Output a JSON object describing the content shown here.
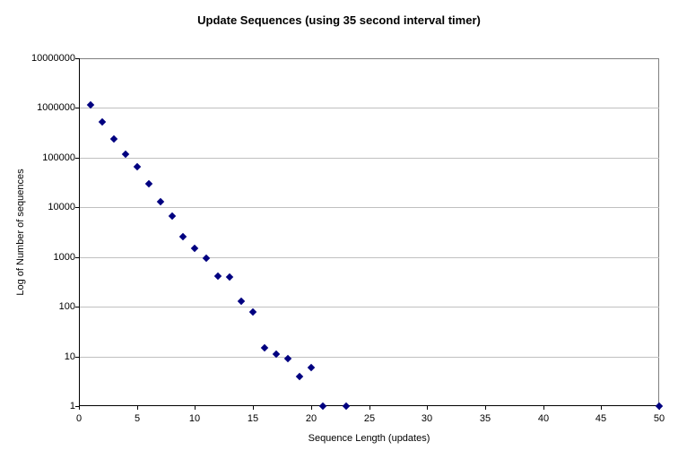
{
  "chart_data": {
    "type": "scatter",
    "title": "Update Sequences (using 35 second interval timer)",
    "xlabel": "Sequence Length (updates)",
    "ylabel": "Log of Number of sequences",
    "x_ticks": [
      0,
      5,
      10,
      15,
      20,
      25,
      30,
      35,
      40,
      45,
      50
    ],
    "y_ticks": [
      1,
      10,
      100,
      1000,
      10000,
      100000,
      1000000,
      10000000
    ],
    "xlim": [
      0,
      50
    ],
    "ylim": [
      1,
      10000000
    ],
    "y_scale": "log",
    "grid": "horizontal",
    "legend": "none",
    "marker": {
      "shape": "diamond",
      "color": "#000080",
      "size": 7
    },
    "colors": {
      "axis": "#000000",
      "gridline": "#c0c0c0",
      "plot_border": "#808080",
      "background": "#ffffff",
      "text": "#000000"
    },
    "points": [
      {
        "x": 1,
        "y": 1150000
      },
      {
        "x": 2,
        "y": 520000
      },
      {
        "x": 3,
        "y": 235000
      },
      {
        "x": 4,
        "y": 115000
      },
      {
        "x": 5,
        "y": 65000
      },
      {
        "x": 6,
        "y": 30000
      },
      {
        "x": 7,
        "y": 12800
      },
      {
        "x": 8,
        "y": 6600
      },
      {
        "x": 9,
        "y": 2600
      },
      {
        "x": 10,
        "y": 1500
      },
      {
        "x": 11,
        "y": 950
      },
      {
        "x": 12,
        "y": 420
      },
      {
        "x": 13,
        "y": 390
      },
      {
        "x": 14,
        "y": 130
      },
      {
        "x": 15,
        "y": 80
      },
      {
        "x": 16,
        "y": 15
      },
      {
        "x": 17,
        "y": 11
      },
      {
        "x": 18,
        "y": 9
      },
      {
        "x": 19,
        "y": 4
      },
      {
        "x": 20,
        "y": 6
      },
      {
        "x": 21,
        "y": 1
      },
      {
        "x": 23,
        "y": 1
      },
      {
        "x": 50,
        "y": 1
      }
    ]
  }
}
